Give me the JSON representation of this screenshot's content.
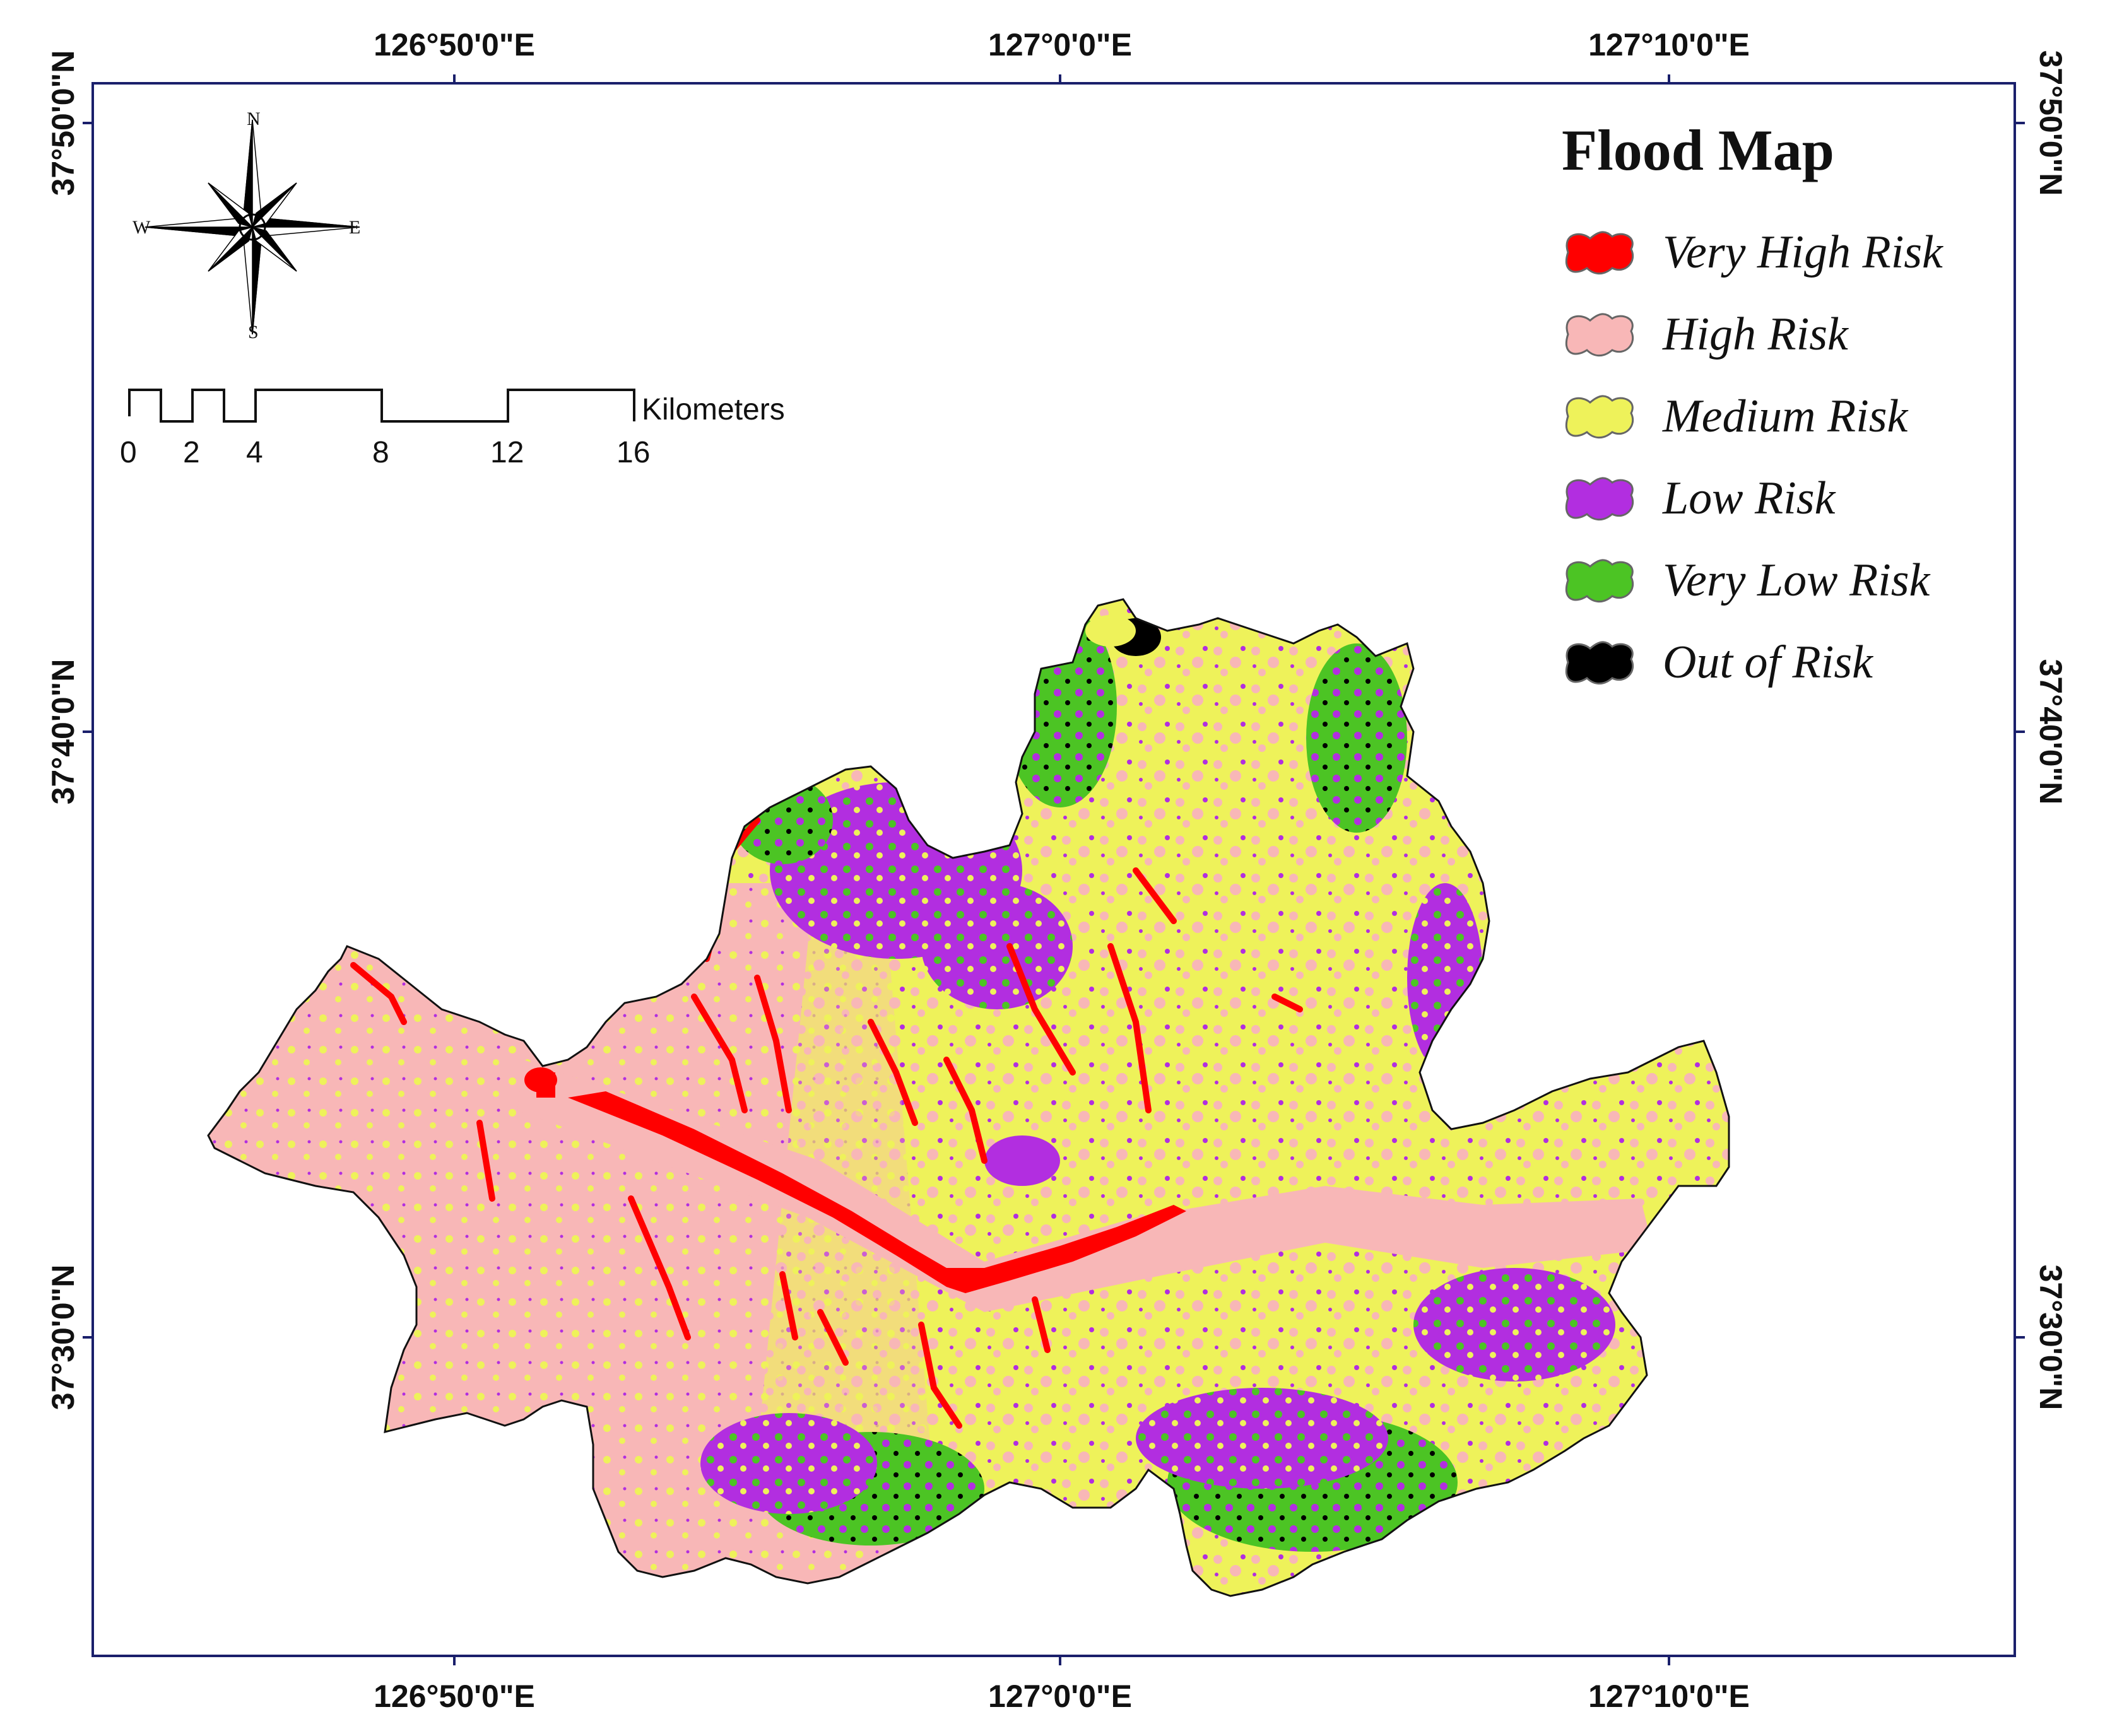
{
  "legend": {
    "title": "Flood Map",
    "items": [
      {
        "label": "Very High Risk",
        "color": "#ff0000"
      },
      {
        "label": "High Risk",
        "color": "#f8b7b7"
      },
      {
        "label": "Medium Risk",
        "color": "#eef25a"
      },
      {
        "label": "Low Risk",
        "color": "#b22ee0"
      },
      {
        "label": "Very Low Risk",
        "color": "#4cc424"
      },
      {
        "label": "Out of Risk",
        "color": "#000000"
      }
    ]
  },
  "graticule": {
    "longitude_labels": [
      "126°50'0\"E",
      "127°0'0\"E",
      "127°10'0\"E"
    ],
    "latitude_labels": [
      "37°50'0\"N",
      "37°40'0\"N",
      "37°30'0\"N"
    ]
  },
  "scale_bar": {
    "unit": "Kilometers",
    "ticks": [
      "0",
      "2",
      "4",
      "8",
      "12",
      "16"
    ]
  },
  "compass": {
    "n": "N",
    "s": "S",
    "e": "E",
    "w": "W"
  }
}
